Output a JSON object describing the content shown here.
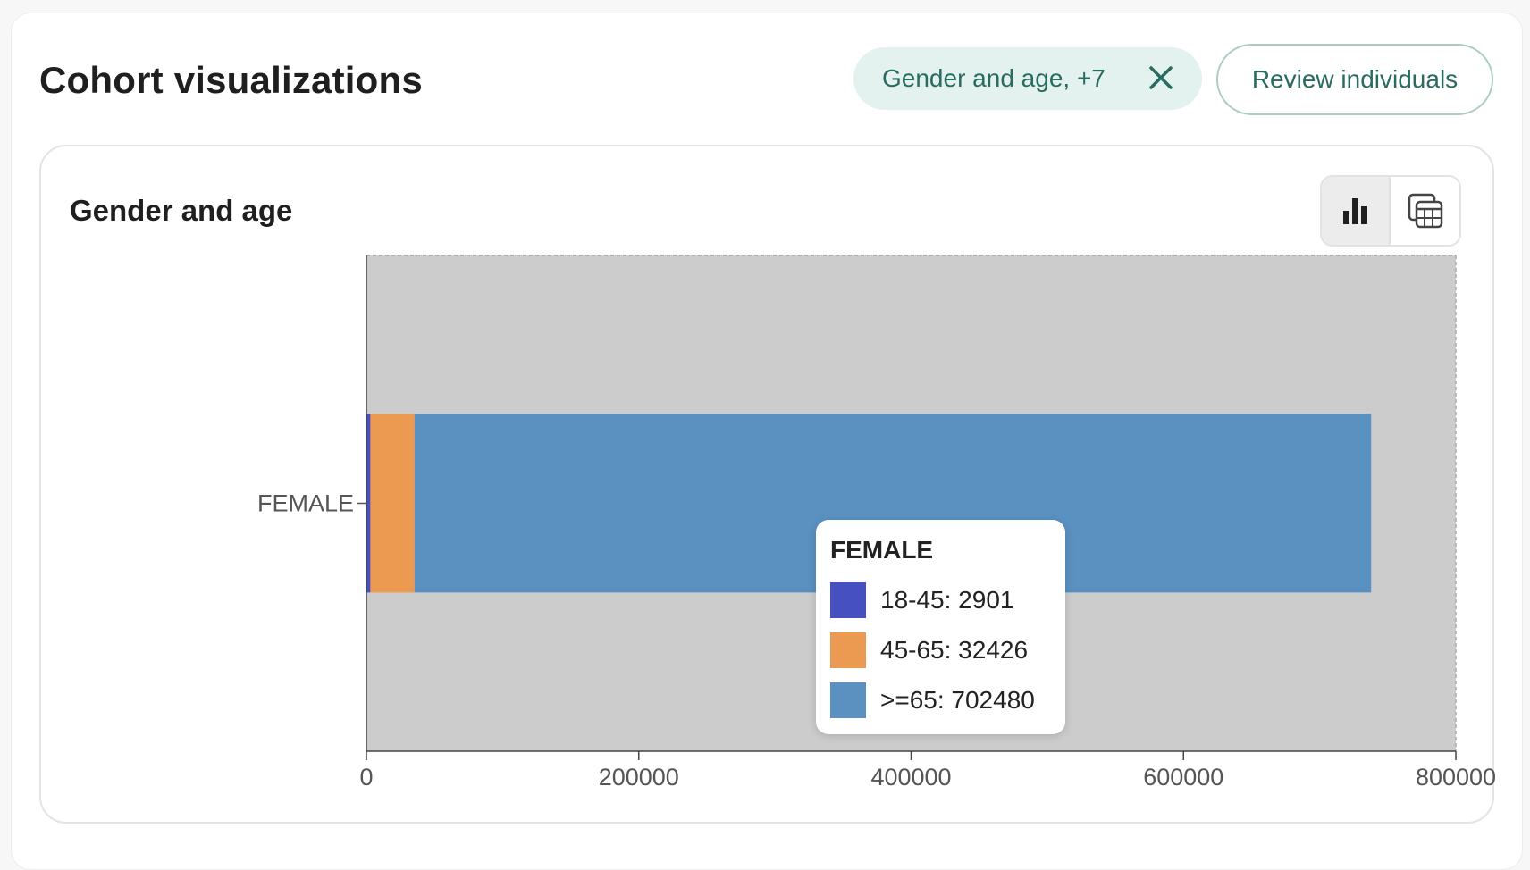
{
  "header": {
    "title": "Cohort visualizations",
    "filter_chip_label": "Gender and age, +7",
    "review_button_label": "Review individuals"
  },
  "card": {
    "title": "Gender and age",
    "view_toggle": {
      "active": "bar-chart",
      "options": [
        "bar-chart-icon",
        "table-icon"
      ]
    }
  },
  "tooltip": {
    "title": "FEMALE",
    "rows": [
      {
        "label": "18-45: 2901",
        "color": "#4650c1"
      },
      {
        "label": "45-65: 32426",
        "color": "#ec9a51"
      },
      {
        "label": ">=65: 702480",
        "color": "#5a91c1"
      }
    ]
  },
  "chart_data": {
    "type": "bar",
    "orientation": "horizontal",
    "stacked": true,
    "categories": [
      "FEMALE"
    ],
    "series": [
      {
        "name": "18-45",
        "values": [
          2901
        ],
        "color": "#4650c1"
      },
      {
        "name": "45-65",
        "values": [
          32426
        ],
        "color": "#ec9a51"
      },
      {
        "name": ">=65",
        "values": [
          702480
        ],
        "color": "#5a91c1"
      }
    ],
    "xlim": [
      0,
      800000
    ],
    "x_ticks": [
      0,
      200000,
      400000,
      600000,
      800000
    ],
    "plot_background": "#cccccc"
  }
}
